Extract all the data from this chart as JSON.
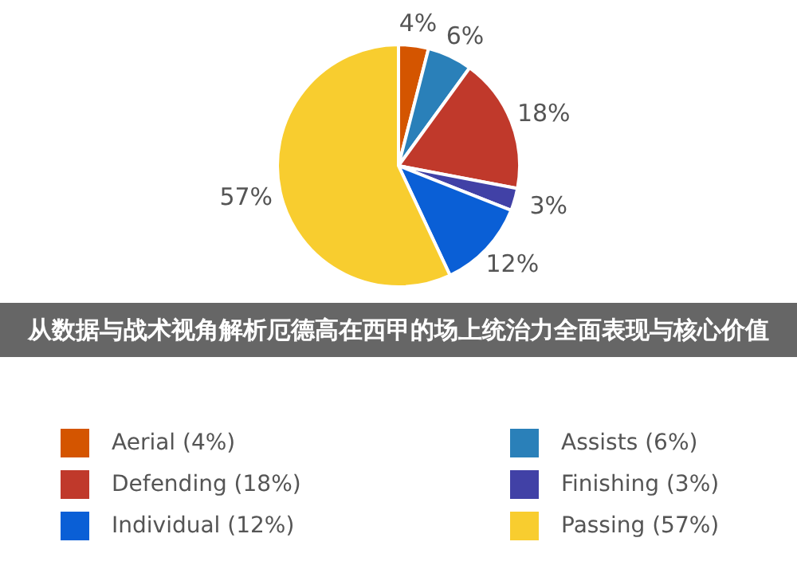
{
  "chart_data": {
    "type": "pie",
    "title": "从数据与战术视角解析厄德高在西甲的场上统治力全面表现与核心价值",
    "categories": [
      "Aerial (4%)",
      "Assists (6%)",
      "Defending (18%)",
      "Finishing (3%)",
      "Individual (12%)",
      "Passing (57%)"
    ],
    "values": [
      4,
      6,
      18,
      3,
      12,
      57
    ],
    "colors": [
      "#d45500",
      "#2a80b9",
      "#c0392b",
      "#4141a6",
      "#0a5fd6",
      "#f8cd2f"
    ],
    "value_labels": [
      "4%",
      "6%",
      "18%",
      "3%",
      "12%",
      "57%"
    ],
    "legend": "bottom"
  }
}
